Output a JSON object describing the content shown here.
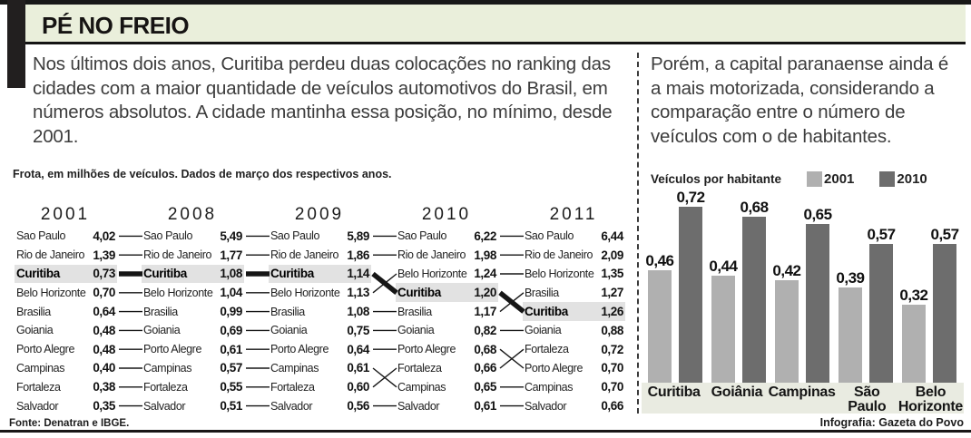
{
  "header": {
    "title": "PÉ NO FREIO"
  },
  "intro_left": "Nos últimos dois anos, Curitiba perdeu duas colocações no ranking das cidades com a maior quantidade de veículos automotivos do Brasil, em números absolutos. A cidade mantinha essa posição, no mínimo, desde 2001.",
  "intro_right": "Porém, a capital paranaense ainda é a mais motorizada, considerando a comparação entre o número de veículos com o de habitantes.",
  "footer": {
    "source": "Fonte: Denatran e IBGE.",
    "credit": "Infografia: Gazeta do Povo"
  },
  "colors": {
    "header_bg": "#eaefdb",
    "strip_bg": "#e9ebe1",
    "highlight": "#e2e2e2",
    "bar_2001": "#b0b0b0",
    "bar_2010": "#6d6d6d"
  },
  "chart_data": [
    {
      "type": "table",
      "note": "Frota, em milhões de veículos. Dados de março dos respectivos anos.",
      "highlight_city": "Curitiba",
      "years": [
        "2001",
        "2008",
        "2009",
        "2010",
        "2011"
      ],
      "columns": [
        {
          "year": "2001",
          "rows": [
            {
              "city": "Sao Paulo",
              "label": "4,02",
              "value": 4.02
            },
            {
              "city": "Rio de Janeiro",
              "label": "1,39",
              "value": 1.39
            },
            {
              "city": "Curitiba",
              "label": "0,73",
              "value": 0.73
            },
            {
              "city": "Belo Horizonte",
              "label": "0,70",
              "value": 0.7
            },
            {
              "city": "Brasilia",
              "label": "0,64",
              "value": 0.64
            },
            {
              "city": "Goiania",
              "label": "0,48",
              "value": 0.48
            },
            {
              "city": "Porto Alegre",
              "label": "0,48",
              "value": 0.48
            },
            {
              "city": "Campinas",
              "label": "0,40",
              "value": 0.4
            },
            {
              "city": "Fortaleza",
              "label": "0,38",
              "value": 0.38
            },
            {
              "city": "Salvador",
              "label": "0,35",
              "value": 0.35
            }
          ]
        },
        {
          "year": "2008",
          "rows": [
            {
              "city": "Sao Paulo",
              "label": "5,49",
              "value": 5.49
            },
            {
              "city": "Rio de Janeiro",
              "label": "1,77",
              "value": 1.77
            },
            {
              "city": "Curitiba",
              "label": "1,08",
              "value": 1.08
            },
            {
              "city": "Belo Horizonte",
              "label": "1,04",
              "value": 1.04
            },
            {
              "city": "Brasilia",
              "label": "0,99",
              "value": 0.99
            },
            {
              "city": "Goiania",
              "label": "0,69",
              "value": 0.69
            },
            {
              "city": "Porto Alegre",
              "label": "0,61",
              "value": 0.61
            },
            {
              "city": "Campinas",
              "label": "0,57",
              "value": 0.57
            },
            {
              "city": "Fortaleza",
              "label": "0,55",
              "value": 0.55
            },
            {
              "city": "Salvador",
              "label": "0,51",
              "value": 0.51
            }
          ]
        },
        {
          "year": "2009",
          "rows": [
            {
              "city": "Sao Paulo",
              "label": "5,89",
              "value": 5.89
            },
            {
              "city": "Rio de Janeiro",
              "label": "1,86",
              "value": 1.86
            },
            {
              "city": "Curitiba",
              "label": "1,14",
              "value": 1.14
            },
            {
              "city": "Belo Horizonte",
              "label": "1,13",
              "value": 1.13
            },
            {
              "city": "Brasilia",
              "label": "1,08",
              "value": 1.08
            },
            {
              "city": "Goiania",
              "label": "0,75",
              "value": 0.75
            },
            {
              "city": "Porto Alegre",
              "label": "0,64",
              "value": 0.64
            },
            {
              "city": "Campinas",
              "label": "0,61",
              "value": 0.61
            },
            {
              "city": "Fortaleza",
              "label": "0,60",
              "value": 0.6
            },
            {
              "city": "Salvador",
              "label": "0,56",
              "value": 0.56
            }
          ]
        },
        {
          "year": "2010",
          "rows": [
            {
              "city": "Sao Paulo",
              "label": "6,22",
              "value": 6.22
            },
            {
              "city": "Rio de Janeiro",
              "label": "1,98",
              "value": 1.98
            },
            {
              "city": "Belo Horizonte",
              "label": "1,24",
              "value": 1.24
            },
            {
              "city": "Curitiba",
              "label": "1,20",
              "value": 1.2
            },
            {
              "city": "Brasilia",
              "label": "1,17",
              "value": 1.17
            },
            {
              "city": "Goiania",
              "label": "0,82",
              "value": 0.82
            },
            {
              "city": "Porto Alegre",
              "label": "0,68",
              "value": 0.68
            },
            {
              "city": "Fortaleza",
              "label": "0,66",
              "value": 0.66
            },
            {
              "city": "Campinas",
              "label": "0,65",
              "value": 0.65
            },
            {
              "city": "Salvador",
              "label": "0,61",
              "value": 0.61
            }
          ]
        },
        {
          "year": "2011",
          "rows": [
            {
              "city": "Sao Paulo",
              "label": "6,44",
              "value": 6.44
            },
            {
              "city": "Rio de Janeiro",
              "label": "2,09",
              "value": 2.09
            },
            {
              "city": "Belo Horizonte",
              "label": "1,35",
              "value": 1.35
            },
            {
              "city": "Brasilia",
              "label": "1,27",
              "value": 1.27
            },
            {
              "city": "Curitiba",
              "label": "1,26",
              "value": 1.26
            },
            {
              "city": "Goiania",
              "label": "0,88",
              "value": 0.88
            },
            {
              "city": "Fortaleza",
              "label": "0,72",
              "value": 0.72
            },
            {
              "city": "Porto Alegre",
              "label": "0,70",
              "value": 0.7
            },
            {
              "city": "Campinas",
              "label": "0,70",
              "value": 0.7
            },
            {
              "city": "Salvador",
              "label": "0,66",
              "value": 0.66
            }
          ]
        }
      ]
    },
    {
      "type": "bar",
      "title": "Veículos por habitante",
      "categories": [
        "Curitiba",
        "Goiânia",
        "Campinas",
        "São Paulo",
        "Belo Horizonte"
      ],
      "series": [
        {
          "name": "2001",
          "color": "#b0b0b0",
          "values": [
            0.46,
            0.44,
            0.42,
            0.39,
            0.32
          ],
          "labels": [
            "0,46",
            "0,44",
            "0,42",
            "0,39",
            "0,32"
          ]
        },
        {
          "name": "2010",
          "color": "#6d6d6d",
          "values": [
            0.72,
            0.68,
            0.65,
            0.57,
            0.57
          ],
          "labels": [
            "0,72",
            "0,68",
            "0,65",
            "0,57",
            "0,57"
          ]
        }
      ],
      "ylim": [
        0,
        0.8
      ],
      "grid": false,
      "legend_position": "top"
    }
  ]
}
